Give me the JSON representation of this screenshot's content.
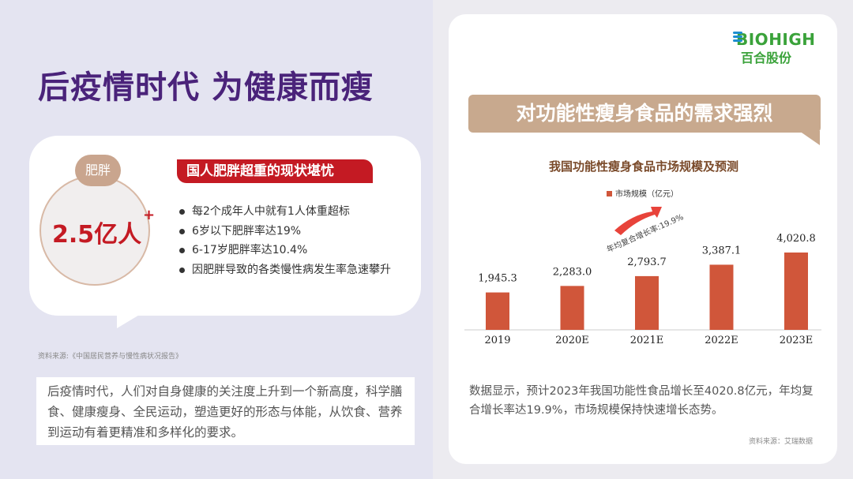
{
  "left": {
    "title": "后疫情时代  为健康而瘦",
    "tag": "肥胖",
    "big_number": "2.5亿人",
    "plus": "+",
    "heading": "国人肥胖超重的现状堪忧",
    "bullets": [
      "每2个成年人中就有1人体重超标",
      "6岁以下肥胖率达19%",
      "6-17岁肥胖率达10.4%",
      "因肥胖导致的各类慢性病发生率急速攀升"
    ],
    "source": "资料来源:《中国居民营养与慢性病状况报告》",
    "paragraph": "后疫情时代，人们对自身健康的关注度上升到一个新高度，科学膳食、健康瘦身、全民运动，塑造更好的形态与体能，从饮食、营养到运动有着更精准和多样化的要求。"
  },
  "right": {
    "logo_en": "BIOHIGH",
    "logo_cn": "百合股份",
    "banner": "对功能性瘦身食品的需求强烈",
    "paragraph": "数据显示，预计2023年我国功能性食品增长至4020.8亿元，年均复合增长率达19.9%，市场规模保持快速增长态势。",
    "source": "资料来源：艾瑞数据"
  },
  "chart_data": {
    "type": "bar",
    "title": "我国功能性瘦身食品市场规模及预测",
    "categories": [
      "2019",
      "2020E",
      "2021E",
      "2022E",
      "2023E"
    ],
    "series": [
      {
        "name": "市场规模（亿元）",
        "values": [
          1945.3,
          2283.0,
          2793.7,
          3387.1,
          4020.8
        ]
      }
    ],
    "labels": [
      "1,945.3",
      "2,283.0",
      "2,793.7",
      "3,387.1",
      "4,020.8"
    ],
    "annotation": "年均复合增长率:19.9%",
    "ylim": [
      0,
      4020.8
    ],
    "legend": "top",
    "bar_color": "#d0563a"
  }
}
